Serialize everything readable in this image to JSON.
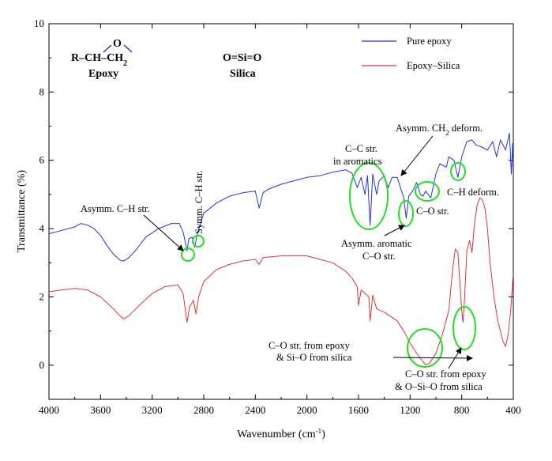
{
  "chart_data": {
    "type": "line",
    "title": "",
    "xlabel": "Wavenumber (cm⁻¹)",
    "ylabel": "Transmittance (%)",
    "xlim": [
      4000,
      400
    ],
    "ylim": [
      -1,
      10
    ],
    "x_ticks": [
      4000,
      3600,
      3200,
      2800,
      2400,
      2000,
      1600,
      1200,
      800,
      400
    ],
    "y_ticks": [
      0,
      2,
      4,
      6,
      8,
      10
    ],
    "grid": false,
    "legend_position": "top-right",
    "colors": {
      "pure_epoxy": "#2233dd",
      "epoxy_silica": "#dd3333",
      "highlight": "#22dd22"
    },
    "series": [
      {
        "name": "Pure epoxy",
        "color": "#2233dd",
        "points": [
          [
            4000,
            3.85
          ],
          [
            3900,
            3.95
          ],
          [
            3800,
            4.05
          ],
          [
            3750,
            4.15
          ],
          [
            3700,
            4.1
          ],
          [
            3650,
            4.0
          ],
          [
            3600,
            3.8
          ],
          [
            3550,
            3.5
          ],
          [
            3500,
            3.25
          ],
          [
            3450,
            3.08
          ],
          [
            3420,
            3.05
          ],
          [
            3380,
            3.15
          ],
          [
            3320,
            3.4
          ],
          [
            3250,
            3.75
          ],
          [
            3150,
            4.0
          ],
          [
            3050,
            4.15
          ],
          [
            2990,
            4.15
          ],
          [
            2960,
            3.9
          ],
          [
            2930,
            3.35
          ],
          [
            2915,
            3.7
          ],
          [
            2890,
            3.75
          ],
          [
            2870,
            3.45
          ],
          [
            2850,
            3.85
          ],
          [
            2800,
            4.45
          ],
          [
            2700,
            4.75
          ],
          [
            2600,
            4.95
          ],
          [
            2500,
            5.05
          ],
          [
            2400,
            5.1
          ],
          [
            2370,
            4.6
          ],
          [
            2340,
            5.05
          ],
          [
            2300,
            5.15
          ],
          [
            2200,
            5.3
          ],
          [
            2100,
            5.4
          ],
          [
            2000,
            5.5
          ],
          [
            1900,
            5.55
          ],
          [
            1800,
            5.65
          ],
          [
            1700,
            5.72
          ],
          [
            1650,
            5.62
          ],
          [
            1610,
            5.2
          ],
          [
            1580,
            5.5
          ],
          [
            1550,
            5.0
          ],
          [
            1530,
            5.55
          ],
          [
            1510,
            4.1
          ],
          [
            1490,
            5.6
          ],
          [
            1460,
            5.0
          ],
          [
            1440,
            5.4
          ],
          [
            1400,
            5.55
          ],
          [
            1370,
            5.2
          ],
          [
            1340,
            5.5
          ],
          [
            1300,
            5.5
          ],
          [
            1250,
            4.9
          ],
          [
            1230,
            4.3
          ],
          [
            1210,
            4.95
          ],
          [
            1180,
            5.1
          ],
          [
            1150,
            5.35
          ],
          [
            1120,
            5.0
          ],
          [
            1100,
            4.95
          ],
          [
            1080,
            5.1
          ],
          [
            1040,
            4.9
          ],
          [
            1000,
            5.6
          ],
          [
            970,
            5.9
          ],
          [
            920,
            5.8
          ],
          [
            900,
            6.1
          ],
          [
            860,
            6.0
          ],
          [
            830,
            5.5
          ],
          [
            800,
            6.1
          ],
          [
            760,
            6.55
          ],
          [
            720,
            6.6
          ],
          [
            690,
            6.45
          ],
          [
            650,
            6.4
          ],
          [
            600,
            6.3
          ],
          [
            560,
            6.55
          ],
          [
            530,
            6.1
          ],
          [
            500,
            6.6
          ],
          [
            460,
            6.3
          ],
          [
            430,
            6.8
          ],
          [
            415,
            5.6
          ],
          [
            405,
            6.5
          ],
          [
            400,
            5.5
          ]
        ]
      },
      {
        "name": "Epoxy–Silica",
        "color": "#dd3333",
        "points": [
          [
            4000,
            2.15
          ],
          [
            3900,
            2.2
          ],
          [
            3800,
            2.25
          ],
          [
            3700,
            2.2
          ],
          [
            3600,
            2.0
          ],
          [
            3500,
            1.65
          ],
          [
            3450,
            1.45
          ],
          [
            3420,
            1.35
          ],
          [
            3380,
            1.45
          ],
          [
            3300,
            1.75
          ],
          [
            3200,
            2.1
          ],
          [
            3100,
            2.3
          ],
          [
            3000,
            2.35
          ],
          [
            2960,
            2.1
          ],
          [
            2930,
            1.25
          ],
          [
            2910,
            1.7
          ],
          [
            2880,
            1.9
          ],
          [
            2860,
            1.5
          ],
          [
            2840,
            2.0
          ],
          [
            2800,
            2.45
          ],
          [
            2700,
            2.8
          ],
          [
            2600,
            2.95
          ],
          [
            2500,
            3.05
          ],
          [
            2400,
            3.1
          ],
          [
            2370,
            2.95
          ],
          [
            2340,
            3.15
          ],
          [
            2200,
            3.2
          ],
          [
            2000,
            3.2
          ],
          [
            1900,
            3.1
          ],
          [
            1800,
            3.0
          ],
          [
            1700,
            2.75
          ],
          [
            1650,
            2.55
          ],
          [
            1610,
            2.3
          ],
          [
            1600,
            1.75
          ],
          [
            1580,
            2.2
          ],
          [
            1520,
            2.0
          ],
          [
            1510,
            1.3
          ],
          [
            1490,
            2.05
          ],
          [
            1460,
            1.65
          ],
          [
            1400,
            1.55
          ],
          [
            1300,
            1.3
          ],
          [
            1250,
            1.0
          ],
          [
            1200,
            0.65
          ],
          [
            1150,
            0.35
          ],
          [
            1100,
            0.1
          ],
          [
            1080,
            0.02
          ],
          [
            1050,
            0.05
          ],
          [
            1000,
            0.35
          ],
          [
            950,
            0.9
          ],
          [
            900,
            1.6
          ],
          [
            870,
            2.8
          ],
          [
            850,
            3.4
          ],
          [
            830,
            3.3
          ],
          [
            800,
            1.6
          ],
          [
            790,
            1.25
          ],
          [
            780,
            1.8
          ],
          [
            760,
            3.35
          ],
          [
            740,
            3.65
          ],
          [
            720,
            3.3
          ],
          [
            700,
            4.2
          ],
          [
            680,
            4.7
          ],
          [
            660,
            4.9
          ],
          [
            640,
            4.85
          ],
          [
            620,
            4.6
          ],
          [
            600,
            4.0
          ],
          [
            580,
            3.0
          ],
          [
            550,
            2.0
          ],
          [
            520,
            1.3
          ],
          [
            480,
            0.7
          ],
          [
            460,
            0.55
          ],
          [
            440,
            0.9
          ],
          [
            420,
            1.6
          ],
          [
            400,
            2.7
          ]
        ]
      }
    ],
    "legend": [
      "Pure epoxy",
      "Epoxy–Silica"
    ],
    "structures": {
      "epoxy_formula_left": "R–CH–CH",
      "epoxy_formula_sub": "2",
      "epoxy_oxygen": "O",
      "epoxy_name": "Epoxy",
      "silica_formula": "O=Si=O",
      "silica_name": "Silica"
    },
    "annotations": {
      "asym_ch": "Asymm. C–H str.",
      "sym_ch": "Symm. C–H str.",
      "cc_line1": "C–C str.",
      "cc_line2": "in aromatics",
      "ch2_text": "Asymm. CH",
      "ch2_sub": "2",
      "ch2_after": " deform.",
      "ch_deform": "C–H deform.",
      "co_str": "C–O str.",
      "asym_arom_line1": "Asymm. aromatic",
      "asym_arom_line2": "C–O str.",
      "co_si_line1": "C–O str. from epoxy",
      "co_si_line2": "& Si–O from silica",
      "co_osi_line1": "C–O str. from epoxy",
      "co_osi_line2": "& O–Si–O from silica"
    }
  }
}
